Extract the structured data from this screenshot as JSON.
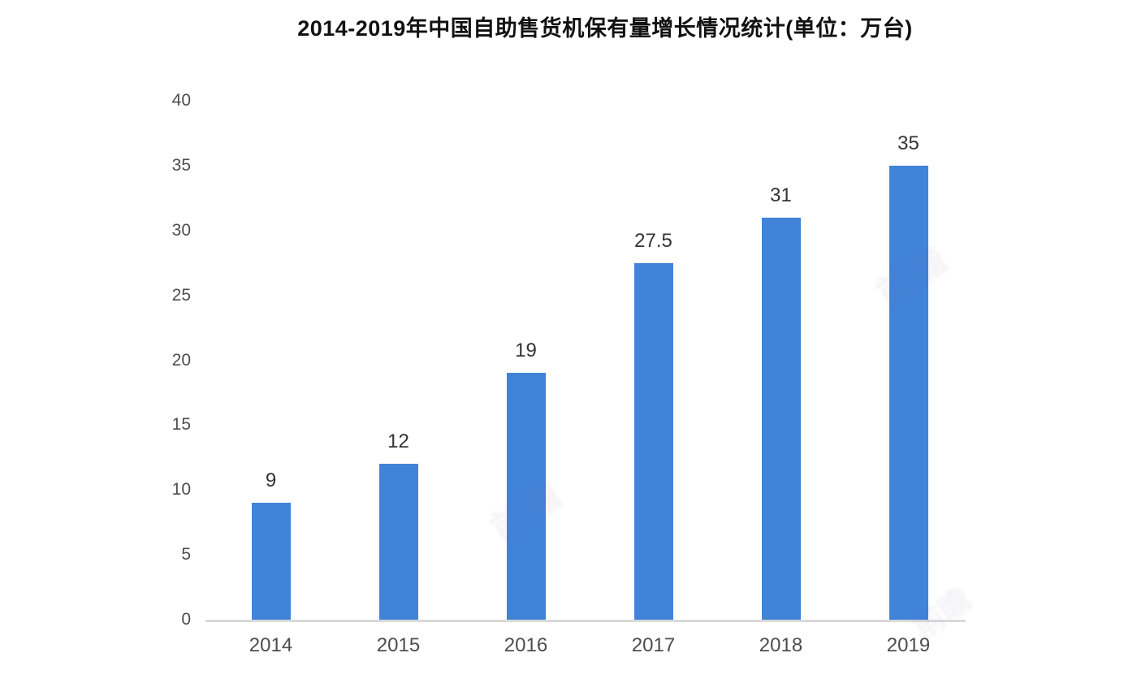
{
  "title": "2014-2019年中国自助售货机保有量增长情况统计(单位：万台)",
  "chart_data": {
    "type": "bar",
    "title": "2014-2019年中国自助售货机保有量增长情况统计(单位：万台)",
    "categories": [
      "2014",
      "2015",
      "2016",
      "2017",
      "2018",
      "2019"
    ],
    "values": [
      9,
      12,
      19,
      27.5,
      31,
      35
    ],
    "value_labels": [
      "9",
      "12",
      "19",
      "27.5",
      "31",
      "35"
    ],
    "unit": "万台",
    "xlabel": "",
    "ylabel": "",
    "ylim": [
      0,
      40
    ],
    "y_ticks": [
      0,
      5,
      10,
      15,
      20,
      25,
      30,
      35,
      40
    ],
    "grid": false,
    "legend": false,
    "bar_color": "#4183d9"
  },
  "colors": {
    "bar": "#4183d9",
    "axis_line": "#d9d9d9",
    "tick_label": "#4d4d4d",
    "value_label": "#333333",
    "title": "#111111",
    "background": "#ffffff"
  },
  "watermark": {
    "text": "前瞻"
  }
}
